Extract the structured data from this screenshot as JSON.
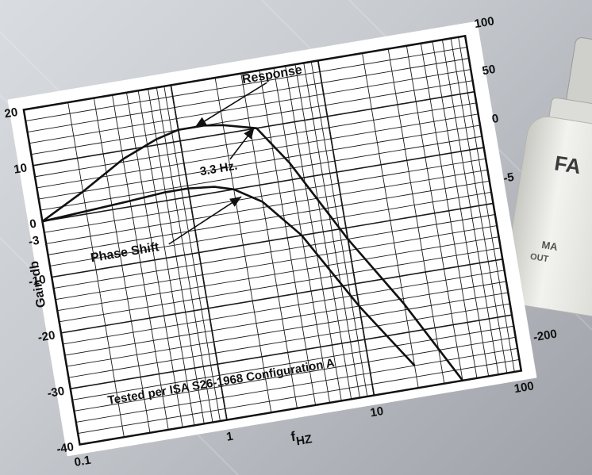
{
  "colors": {
    "paper": "#ffffff",
    "ink": "#111111",
    "grid": "#1a1a1a",
    "background": "#c4c8cd",
    "device_body": "#e6e6e2"
  },
  "device": {
    "visible_label_fragments": [
      "FA",
      "MA",
      "OUT"
    ]
  },
  "chart_data": {
    "type": "line",
    "xscale": "log",
    "xlim": [
      0.1,
      100
    ],
    "xticks": [
      0.1,
      1,
      10,
      100
    ],
    "xtick_labels": [
      "0.1",
      "1",
      "10",
      "100"
    ],
    "xlabel": "f",
    "xlabel_subscript": "HZ",
    "ylim": [
      -40,
      20
    ],
    "left_axis_label": "Gain db",
    "left_tick_labels": [
      {
        "value": 20,
        "text": "20"
      },
      {
        "value": 10,
        "text": "10"
      },
      {
        "value": 0,
        "text": "0"
      },
      {
        "value": -3,
        "text": "-3"
      },
      {
        "value": -10,
        "text": "-10"
      },
      {
        "value": -20,
        "text": "-20"
      },
      {
        "value": -30,
        "text": "-30"
      },
      {
        "value": -40,
        "text": "-40"
      }
    ],
    "right_tick_labels": [
      "100",
      "50",
      "0",
      "-5",
      "-200"
    ],
    "series": [
      {
        "name": "Response",
        "x": [
          0.1,
          0.2,
          0.4,
          0.7,
          1.0,
          1.5,
          2.0,
          3.3,
          5.0,
          10.0,
          20.0,
          40.0
        ],
        "y": [
          0.0,
          4.0,
          8.5,
          11.0,
          12.0,
          12.0,
          11.5,
          10.0,
          3.0,
          -12.0,
          -25.0,
          -40.0
        ]
      },
      {
        "x": [
          0.1,
          0.2,
          0.4,
          0.7,
          1.0,
          1.5,
          2.0,
          3.0,
          5.0,
          10.0,
          20.0
        ],
        "y": [
          0.0,
          0.5,
          1.0,
          1.5,
          1.5,
          1.0,
          0.0,
          -3.0,
          -10.0,
          -24.0,
          -36.0
        ]
      }
    ],
    "annotations": [
      {
        "text": "Response",
        "x": 3.0,
        "y": 18.2,
        "arrow_to": [
          1.3,
          12.0
        ]
      },
      {
        "text": "3.3 Hz.",
        "x": 1.25,
        "y": 3.4,
        "arrow_to": [
          3.2,
          10.2
        ]
      },
      {
        "text": "Phase Shift",
        "x": 0.19,
        "y": -8.5,
        "arrow_to": [
          2.2,
          -1.5
        ]
      }
    ],
    "footnote": "Tested per ISA S26-1968 Configuration A",
    "grid": true
  }
}
